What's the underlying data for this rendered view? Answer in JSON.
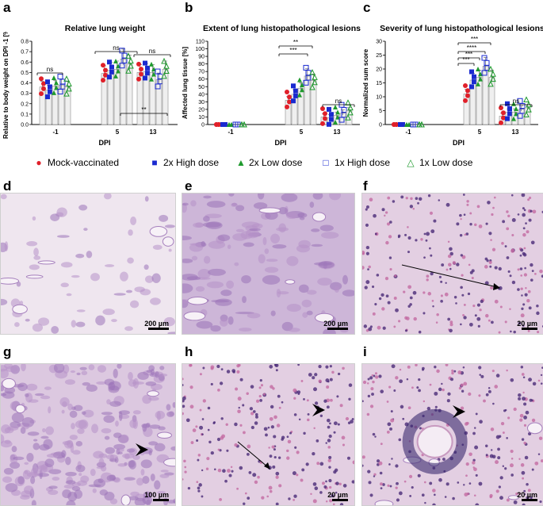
{
  "panels": {
    "a": "a",
    "b": "b",
    "c": "c",
    "d": "d",
    "e": "e",
    "f": "f",
    "g": "g",
    "h": "h",
    "i": "i"
  },
  "legend": [
    {
      "label": "Mock-vaccinated",
      "color": "#e0202a",
      "marker": "filled-circle"
    },
    {
      "label": "2x High dose",
      "color": "#1a2ad0",
      "marker": "filled-square"
    },
    {
      "label": "2x Low dose",
      "color": "#1f9a2e",
      "marker": "filled-triangle"
    },
    {
      "label": "1x High dose",
      "color": "#1a2ad0",
      "marker": "open-square"
    },
    {
      "label": "1x Low dose",
      "color": "#1f9a2e",
      "marker": "open-triangle"
    }
  ],
  "chart_data": [
    {
      "type": "bar",
      "title": "Relative lung weight",
      "xlabel": "DPI",
      "ylabel": "Relative to body weight on DPI -1 [%]",
      "categories": [
        "-1",
        "5",
        "13"
      ],
      "ylim": [
        0,
        0.8
      ],
      "yticks": [
        "0.0",
        "0.1",
        "0.2",
        "0.3",
        "0.4",
        "0.5",
        "0.6",
        "0.7",
        "0.8"
      ],
      "series": [
        {
          "name": "Mock-vaccinated",
          "values": [
            0.36,
            0.49,
            0.5
          ]
        },
        {
          "name": "2x High dose",
          "values": [
            0.33,
            0.52,
            0.51
          ]
        },
        {
          "name": "2x Low dose",
          "values": [
            0.37,
            0.53,
            0.5
          ]
        },
        {
          "name": "1x High dose",
          "values": [
            0.38,
            0.63,
            0.43
          ]
        },
        {
          "name": "1x Low dose",
          "values": [
            0.36,
            0.58,
            0.53
          ]
        }
      ],
      "annotations": [
        {
          "text": "ns",
          "category": "-1"
        },
        {
          "text": "ns",
          "category": "5"
        },
        {
          "text": "ns",
          "category": "13"
        },
        {
          "text": "**",
          "between": [
            "5",
            "13"
          ]
        }
      ]
    },
    {
      "type": "bar",
      "title": "Extent of lung histopathological lesions",
      "xlabel": "DPI",
      "ylabel": "Affected lung tissue [%]",
      "categories": [
        "-1",
        "5",
        "13"
      ],
      "ylim": [
        0,
        110
      ],
      "yticks": [
        "0",
        "10",
        "20",
        "30",
        "40",
        "50",
        "60",
        "70",
        "80",
        "90",
        "100",
        "110"
      ],
      "series": [
        {
          "name": "Mock-vaccinated",
          "values": [
            0,
            32,
            10
          ]
        },
        {
          "name": "2x High dose",
          "values": [
            0,
            40,
            9
          ]
        },
        {
          "name": "2x Low dose",
          "values": [
            0,
            48,
            12
          ]
        },
        {
          "name": "1x High dose",
          "values": [
            0,
            64,
            15
          ]
        },
        {
          "name": "1x Low dose",
          "values": [
            0,
            58,
            18
          ]
        }
      ],
      "annotations": [
        {
          "text": "**",
          "category": "5"
        },
        {
          "text": "***",
          "category": "5"
        },
        {
          "text": "ns",
          "category": "13"
        }
      ]
    },
    {
      "type": "bar",
      "title": "Severity of lung histopathological lesions",
      "xlabel": "DPI",
      "ylabel": "Normalized sum score",
      "categories": [
        "-1",
        "5",
        "13"
      ],
      "ylim": [
        0,
        30
      ],
      "yticks": [
        "0",
        "5",
        "10",
        "15",
        "20",
        "25",
        "30"
      ],
      "series": [
        {
          "name": "Mock-vaccinated",
          "values": [
            0,
            11,
            3
          ]
        },
        {
          "name": "2x High dose",
          "values": [
            0,
            16,
            4.5
          ]
        },
        {
          "name": "2x Low dose",
          "values": [
            0,
            17,
            4.5
          ]
        },
        {
          "name": "1x High dose",
          "values": [
            0,
            21,
            5.5
          ]
        },
        {
          "name": "1x Low dose",
          "values": [
            0,
            17,
            6
          ]
        }
      ],
      "annotations": [
        {
          "text": "***",
          "category": "5"
        },
        {
          "text": "****",
          "category": "5"
        },
        {
          "text": "***",
          "category": "5"
        },
        {
          "text": "***",
          "category": "5"
        },
        {
          "text": "ns",
          "category": "13"
        }
      ]
    }
  ],
  "micrographs": [
    {
      "panel": "d",
      "scale": "200 µm",
      "style": "light"
    },
    {
      "panel": "e",
      "scale": "200 µm",
      "style": "dense"
    },
    {
      "panel": "f",
      "scale": "20 µm",
      "style": "cells"
    },
    {
      "panel": "g",
      "scale": "100 µm",
      "style": "mixed"
    },
    {
      "panel": "h",
      "scale": "20 µm",
      "style": "cells"
    },
    {
      "panel": "i",
      "scale": "20 µm",
      "style": "vessel"
    }
  ],
  "colors": {
    "red": "#e0202a",
    "blue": "#1a2ad0",
    "green": "#1f9a2e",
    "bar_fill": "#efefef",
    "bar_edge": "#8a8a8a"
  }
}
